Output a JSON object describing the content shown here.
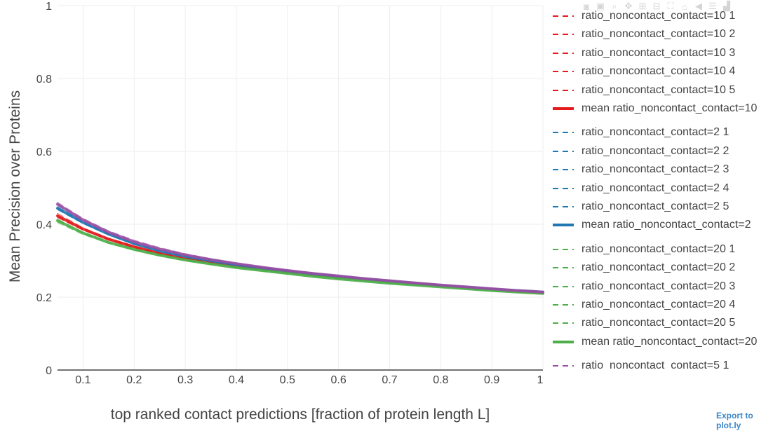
{
  "modebar": {
    "buttons": [
      {
        "name": "camera-icon",
        "glyph": "◙"
      },
      {
        "name": "save-icon",
        "glyph": "▣"
      },
      {
        "name": "zoom-icon",
        "glyph": "⌕"
      },
      {
        "name": "pan-icon",
        "glyph": "✥"
      },
      {
        "name": "zoom-in-icon",
        "glyph": "⊞"
      },
      {
        "name": "zoom-out-icon",
        "glyph": "⊟"
      },
      {
        "name": "autoscale-icon",
        "glyph": "⛶"
      },
      {
        "name": "home-icon",
        "glyph": "⌂"
      },
      {
        "name": "spike-lines-icon",
        "glyph": "◀"
      },
      {
        "name": "compare-icon",
        "glyph": "☰"
      },
      {
        "name": "bar-icon",
        "glyph": "▟"
      }
    ]
  },
  "export_link": "Export to plot.ly",
  "chart_data": {
    "type": "line",
    "title": "",
    "xlabel": "top ranked contact predictions [fraction of protein length L]",
    "ylabel": "Mean Precision over Proteins",
    "xlim": [
      0.05,
      1.0
    ],
    "ylim": [
      0,
      1
    ],
    "xticks": [
      0.1,
      0.2,
      0.3,
      0.4,
      0.5,
      0.6,
      0.7,
      0.8,
      0.9,
      1
    ],
    "xtick_labels": [
      "0.1",
      "0.2",
      "0.3",
      "0.4",
      "0.5",
      "0.6",
      "0.7",
      "0.8",
      "0.9",
      "1"
    ],
    "yticks": [
      0,
      0.2,
      0.4,
      0.6,
      0.8,
      1
    ],
    "ytick_labels": [
      "0",
      "0.2",
      "0.4",
      "0.6",
      "0.8",
      "1"
    ],
    "grid": true,
    "legend_position": "right",
    "x": [
      0.05,
      0.1,
      0.15,
      0.2,
      0.25,
      0.3,
      0.35,
      0.4,
      0.45,
      0.5,
      0.55,
      0.6,
      0.65,
      0.7,
      0.75,
      0.8,
      0.85,
      0.9,
      0.95,
      1.0
    ],
    "series": [
      {
        "name": "ratio_noncontact_contact=10 1",
        "color": "#e41a1c",
        "style": "dash",
        "width": 1.5,
        "values": [
          0.43,
          0.39,
          0.362,
          0.34,
          0.322,
          0.308,
          0.296,
          0.286,
          0.278,
          0.27,
          0.262,
          0.255,
          0.248,
          0.242,
          0.236,
          0.231,
          0.226,
          0.221,
          0.217,
          0.213
        ]
      },
      {
        "name": "ratio_noncontact_contact=10 2",
        "color": "#e41a1c",
        "style": "dash",
        "width": 1.5,
        "values": [
          0.422,
          0.386,
          0.358,
          0.337,
          0.32,
          0.306,
          0.295,
          0.285,
          0.277,
          0.269,
          0.261,
          0.254,
          0.248,
          0.242,
          0.236,
          0.231,
          0.226,
          0.221,
          0.216,
          0.212
        ]
      },
      {
        "name": "ratio_noncontact_contact=10 3",
        "color": "#e41a1c",
        "style": "dash",
        "width": 1.5,
        "values": [
          0.418,
          0.384,
          0.357,
          0.336,
          0.319,
          0.305,
          0.294,
          0.284,
          0.276,
          0.268,
          0.261,
          0.254,
          0.247,
          0.241,
          0.236,
          0.23,
          0.225,
          0.22,
          0.216,
          0.212
        ]
      },
      {
        "name": "ratio_noncontact_contact=10 4",
        "color": "#e41a1c",
        "style": "dash",
        "width": 1.5,
        "values": [
          0.426,
          0.388,
          0.36,
          0.339,
          0.321,
          0.307,
          0.296,
          0.286,
          0.277,
          0.269,
          0.262,
          0.255,
          0.248,
          0.242,
          0.236,
          0.231,
          0.226,
          0.221,
          0.217,
          0.213
        ]
      },
      {
        "name": "ratio_noncontact_contact=10 5",
        "color": "#e41a1c",
        "style": "dash",
        "width": 1.5,
        "values": [
          0.42,
          0.385,
          0.358,
          0.337,
          0.32,
          0.306,
          0.295,
          0.285,
          0.276,
          0.268,
          0.261,
          0.254,
          0.248,
          0.242,
          0.236,
          0.231,
          0.226,
          0.221,
          0.216,
          0.212
        ]
      },
      {
        "name": "mean ratio_noncontact_contact=10",
        "color": "#e41a1c",
        "style": "solid",
        "width": 4,
        "values": [
          0.423,
          0.387,
          0.359,
          0.338,
          0.32,
          0.306,
          0.295,
          0.285,
          0.277,
          0.269,
          0.261,
          0.254,
          0.248,
          0.242,
          0.236,
          0.231,
          0.226,
          0.221,
          0.216,
          0.212
        ]
      },
      {
        "name": "ratio_noncontact_contact=2 1",
        "color": "#1f78b4",
        "style": "dash",
        "width": 1.5,
        "values": [
          0.445,
          0.405,
          0.373,
          0.347,
          0.327,
          0.312,
          0.3,
          0.289,
          0.28,
          0.272,
          0.264,
          0.257,
          0.25,
          0.244,
          0.238,
          0.232,
          0.227,
          0.222,
          0.218,
          0.214
        ]
      },
      {
        "name": "ratio_noncontact_contact=2 2",
        "color": "#1f78b4",
        "style": "dash",
        "width": 1.5,
        "values": [
          0.44,
          0.402,
          0.371,
          0.346,
          0.326,
          0.311,
          0.299,
          0.288,
          0.279,
          0.271,
          0.263,
          0.256,
          0.249,
          0.243,
          0.237,
          0.232,
          0.227,
          0.222,
          0.217,
          0.213
        ]
      },
      {
        "name": "ratio_noncontact_contact=2 3",
        "color": "#1f78b4",
        "style": "dash",
        "width": 1.5,
        "values": [
          0.448,
          0.407,
          0.374,
          0.348,
          0.328,
          0.313,
          0.301,
          0.29,
          0.281,
          0.272,
          0.264,
          0.257,
          0.25,
          0.244,
          0.238,
          0.233,
          0.227,
          0.222,
          0.218,
          0.214
        ]
      },
      {
        "name": "ratio_noncontact_contact=2 4",
        "color": "#1f78b4",
        "style": "dash",
        "width": 1.5,
        "values": [
          0.442,
          0.403,
          0.372,
          0.346,
          0.327,
          0.312,
          0.3,
          0.289,
          0.28,
          0.271,
          0.264,
          0.256,
          0.25,
          0.243,
          0.238,
          0.232,
          0.227,
          0.222,
          0.217,
          0.213
        ]
      },
      {
        "name": "ratio_noncontact_contact=2 5",
        "color": "#1f78b4",
        "style": "dash",
        "width": 1.5,
        "values": [
          0.446,
          0.406,
          0.373,
          0.347,
          0.328,
          0.312,
          0.3,
          0.289,
          0.28,
          0.272,
          0.264,
          0.257,
          0.25,
          0.244,
          0.238,
          0.232,
          0.227,
          0.222,
          0.218,
          0.214
        ]
      },
      {
        "name": "mean ratio_noncontact_contact=2",
        "color": "#1f78b4",
        "style": "solid",
        "width": 4,
        "values": [
          0.444,
          0.405,
          0.373,
          0.347,
          0.327,
          0.312,
          0.3,
          0.289,
          0.28,
          0.272,
          0.264,
          0.257,
          0.25,
          0.244,
          0.238,
          0.232,
          0.227,
          0.222,
          0.218,
          0.214
        ]
      },
      {
        "name": "ratio_noncontact_contact=20 1",
        "color": "#4daf4a",
        "style": "dash",
        "width": 1.5,
        "values": [
          0.41,
          0.376,
          0.351,
          0.331,
          0.315,
          0.302,
          0.291,
          0.282,
          0.273,
          0.265,
          0.258,
          0.251,
          0.245,
          0.239,
          0.233,
          0.228,
          0.223,
          0.219,
          0.214,
          0.21
        ]
      },
      {
        "name": "ratio_noncontact_contact=20 2",
        "color": "#4daf4a",
        "style": "dash",
        "width": 1.5,
        "values": [
          0.405,
          0.372,
          0.348,
          0.329,
          0.313,
          0.3,
          0.29,
          0.281,
          0.272,
          0.264,
          0.257,
          0.25,
          0.244,
          0.238,
          0.233,
          0.228,
          0.223,
          0.218,
          0.214,
          0.21
        ]
      },
      {
        "name": "ratio_noncontact_contact=20 3",
        "color": "#4daf4a",
        "style": "dash",
        "width": 1.5,
        "values": [
          0.414,
          0.378,
          0.352,
          0.332,
          0.316,
          0.303,
          0.292,
          0.282,
          0.273,
          0.265,
          0.258,
          0.251,
          0.245,
          0.239,
          0.233,
          0.228,
          0.223,
          0.219,
          0.214,
          0.21
        ]
      },
      {
        "name": "ratio_noncontact_contact=20 4",
        "color": "#4daf4a",
        "style": "dash",
        "width": 1.5,
        "values": [
          0.408,
          0.374,
          0.35,
          0.33,
          0.314,
          0.301,
          0.29,
          0.281,
          0.272,
          0.264,
          0.257,
          0.25,
          0.244,
          0.238,
          0.233,
          0.228,
          0.223,
          0.218,
          0.214,
          0.21
        ]
      },
      {
        "name": "ratio_noncontact_contact=20 5",
        "color": "#4daf4a",
        "style": "dash",
        "width": 1.5,
        "values": [
          0.412,
          0.377,
          0.351,
          0.331,
          0.315,
          0.302,
          0.291,
          0.282,
          0.273,
          0.265,
          0.258,
          0.251,
          0.245,
          0.239,
          0.233,
          0.228,
          0.223,
          0.219,
          0.214,
          0.21
        ]
      },
      {
        "name": "mean ratio_noncontact_contact=20",
        "color": "#4daf4a",
        "style": "solid",
        "width": 4,
        "values": [
          0.41,
          0.376,
          0.35,
          0.331,
          0.315,
          0.302,
          0.291,
          0.281,
          0.273,
          0.265,
          0.257,
          0.25,
          0.244,
          0.238,
          0.233,
          0.228,
          0.223,
          0.218,
          0.214,
          0.21
        ]
      },
      {
        "name": "ratio_noncontact_contact=5 1",
        "color": "#984ea3",
        "style": "dash",
        "width": 1.5,
        "values": [
          0.46,
          0.416,
          0.382,
          0.356,
          0.336,
          0.319,
          0.305,
          0.293,
          0.283,
          0.274,
          0.266,
          0.258,
          0.251,
          0.245,
          0.239,
          0.233,
          0.228,
          0.223,
          0.218,
          0.214
        ]
      },
      {
        "name": "",
        "color": "#984ea3",
        "style": "dash",
        "width": 1.5,
        "values": [
          0.452,
          0.41,
          0.376,
          0.35,
          0.33,
          0.315,
          0.302,
          0.291,
          0.282,
          0.273,
          0.265,
          0.258,
          0.251,
          0.245,
          0.239,
          0.233,
          0.228,
          0.223,
          0.218,
          0.214
        ]
      },
      {
        "name": "",
        "color": "#984ea3",
        "style": "dash",
        "width": 1.5,
        "values": [
          0.456,
          0.413,
          0.379,
          0.353,
          0.333,
          0.317,
          0.304,
          0.292,
          0.283,
          0.274,
          0.266,
          0.258,
          0.251,
          0.245,
          0.239,
          0.233,
          0.228,
          0.223,
          0.218,
          0.214
        ]
      },
      {
        "name": "",
        "color": "#984ea3",
        "style": "solid",
        "width": 4,
        "values": [
          0.455,
          0.412,
          0.378,
          0.352,
          0.332,
          0.316,
          0.303,
          0.292,
          0.282,
          0.273,
          0.265,
          0.258,
          0.251,
          0.245,
          0.239,
          0.233,
          0.228,
          0.223,
          0.218,
          0.214
        ]
      }
    ]
  }
}
